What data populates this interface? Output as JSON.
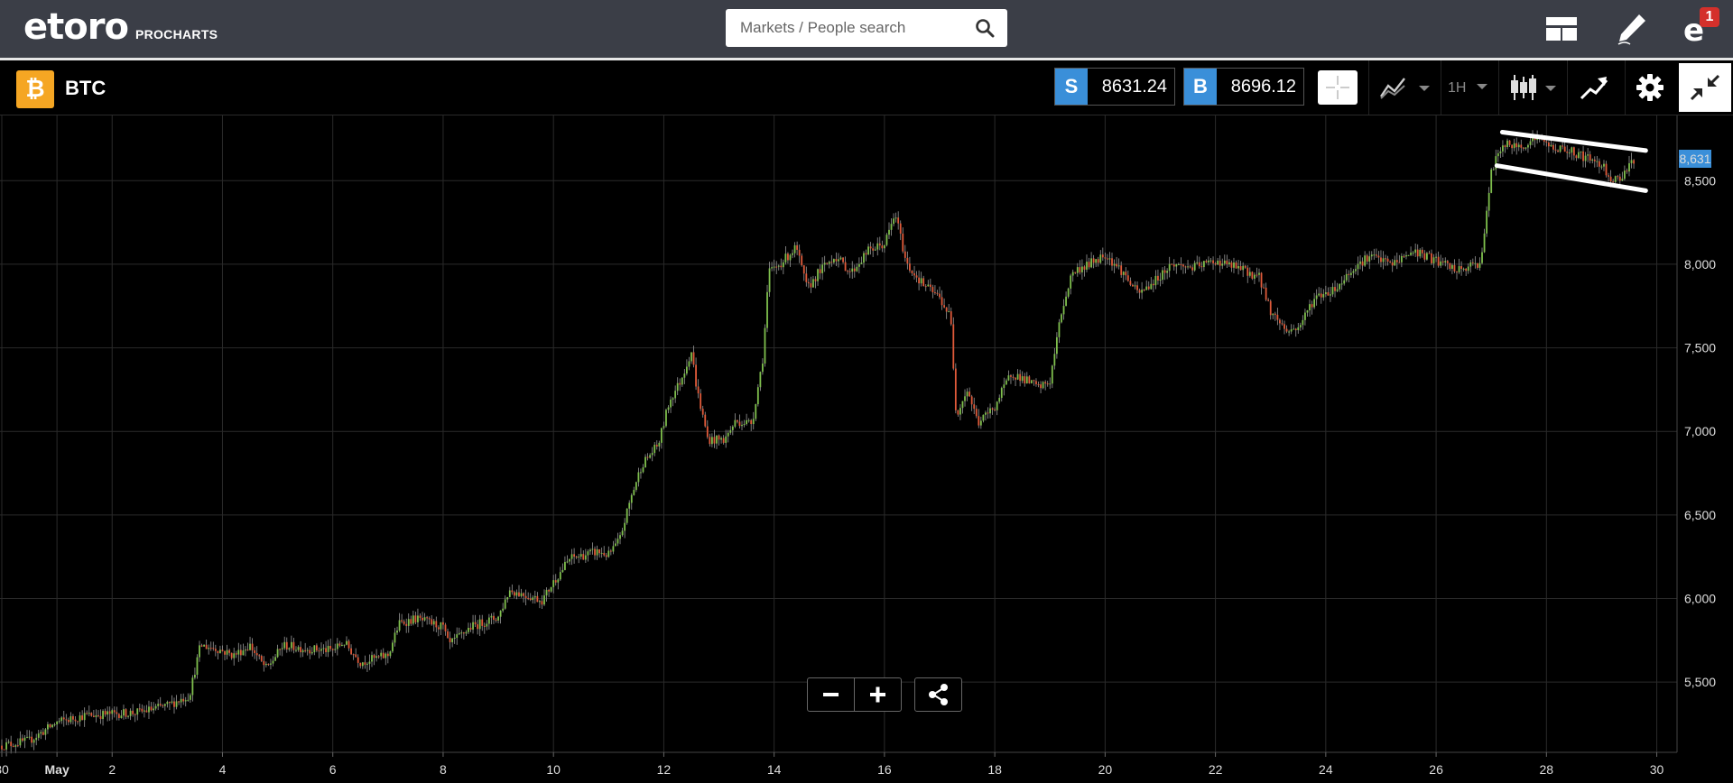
{
  "header": {
    "logo_text": "etoro",
    "logo_subtitle": "PROCHARTS",
    "search_placeholder": "Markets / People search",
    "notification_count": "1"
  },
  "instrument": {
    "symbol": "BTC",
    "icon": "bitcoin-icon",
    "sell_label": "S",
    "sell_price": "8631.24",
    "buy_label": "B",
    "buy_price": "8696.12",
    "timeframe": "1H"
  },
  "colors": {
    "up": "#7fbf4d",
    "down": "#e05a3a",
    "brand_orange": "#f5a623",
    "price_tag": "#3a8fd9"
  },
  "chart_data": {
    "type": "candlestick",
    "title": "",
    "xlabel": "",
    "ylabel": "",
    "x_ticks": [
      "30",
      "May",
      "2",
      "4",
      "6",
      "8",
      "10",
      "12",
      "14",
      "16",
      "18",
      "20",
      "22",
      "24",
      "26",
      "28",
      "30"
    ],
    "y_ticks": [
      5500,
      6000,
      6500,
      7000,
      7500,
      8000,
      8500
    ],
    "ylim": [
      5080,
      8890
    ],
    "x_unit": "days since Apr 30",
    "xlim": [
      0,
      30.4
    ],
    "last_price": 8631,
    "last_price_label": "8,631",
    "grid": true,
    "series_path": [
      [
        0,
        5120
      ],
      [
        0.5,
        5150
      ],
      [
        1,
        5260
      ],
      [
        1.5,
        5300
      ],
      [
        2,
        5310
      ],
      [
        2.5,
        5320
      ],
      [
        3,
        5360
      ],
      [
        3.4,
        5420
      ],
      [
        3.6,
        5720
      ],
      [
        3.9,
        5700
      ],
      [
        4.2,
        5660
      ],
      [
        4.5,
        5720
      ],
      [
        4.7,
        5620
      ],
      [
        4.8,
        5580
      ],
      [
        5.1,
        5720
      ],
      [
        5.5,
        5700
      ],
      [
        6.0,
        5690
      ],
      [
        6.2,
        5740
      ],
      [
        6.5,
        5620
      ],
      [
        7.0,
        5660
      ],
      [
        7.2,
        5850
      ],
      [
        7.5,
        5880
      ],
      [
        8.0,
        5830
      ],
      [
        8.1,
        5720
      ],
      [
        8.5,
        5830
      ],
      [
        9.0,
        5890
      ],
      [
        9.2,
        6050
      ],
      [
        9.5,
        6020
      ],
      [
        9.8,
        5990
      ],
      [
        10.0,
        6100
      ],
      [
        10.3,
        6240
      ],
      [
        10.8,
        6280
      ],
      [
        11.0,
        6260
      ],
      [
        11.2,
        6350
      ],
      [
        11.4,
        6600
      ],
      [
        11.6,
        6800
      ],
      [
        11.9,
        6920
      ],
      [
        12.1,
        7180
      ],
      [
        12.3,
        7300
      ],
      [
        12.5,
        7480
      ],
      [
        12.6,
        7250
      ],
      [
        12.8,
        6950
      ],
      [
        13.1,
        6950
      ],
      [
        13.3,
        7060
      ],
      [
        13.6,
        7050
      ],
      [
        13.8,
        7450
      ],
      [
        13.9,
        7950
      ],
      [
        14.1,
        8000
      ],
      [
        14.4,
        8100
      ],
      [
        14.6,
        7850
      ],
      [
        14.8,
        7950
      ],
      [
        15.1,
        8050
      ],
      [
        15.4,
        7950
      ],
      [
        15.7,
        8080
      ],
      [
        16.0,
        8120
      ],
      [
        16.2,
        8300
      ],
      [
        16.4,
        8000
      ],
      [
        16.7,
        7880
      ],
      [
        17.0,
        7800
      ],
      [
        17.2,
        7680
      ],
      [
        17.3,
        7100
      ],
      [
        17.5,
        7250
      ],
      [
        17.7,
        7050
      ],
      [
        18.0,
        7150
      ],
      [
        18.3,
        7350
      ],
      [
        18.6,
        7300
      ],
      [
        18.8,
        7260
      ],
      [
        19.0,
        7300
      ],
      [
        19.2,
        7700
      ],
      [
        19.4,
        7950
      ],
      [
        19.7,
        8000
      ],
      [
        20.0,
        8060
      ],
      [
        20.3,
        7960
      ],
      [
        20.6,
        7820
      ],
      [
        20.9,
        7900
      ],
      [
        21.2,
        8000
      ],
      [
        21.6,
        7980
      ],
      [
        22.0,
        8020
      ],
      [
        22.4,
        7980
      ],
      [
        22.8,
        7920
      ],
      [
        23.0,
        7720
      ],
      [
        23.3,
        7600
      ],
      [
        23.5,
        7620
      ],
      [
        23.8,
        7800
      ],
      [
        24.2,
        7860
      ],
      [
        24.5,
        7980
      ],
      [
        24.8,
        8050
      ],
      [
        25.2,
        8000
      ],
      [
        25.6,
        8080
      ],
      [
        26.0,
        8020
      ],
      [
        26.4,
        7960
      ],
      [
        26.8,
        8010
      ],
      [
        26.9,
        8250
      ],
      [
        27.0,
        8550
      ],
      [
        27.2,
        8720
      ],
      [
        27.5,
        8700
      ],
      [
        27.8,
        8760
      ],
      [
        28.1,
        8700
      ],
      [
        28.4,
        8680
      ],
      [
        28.7,
        8640
      ],
      [
        29.0,
        8600
      ],
      [
        29.2,
        8500
      ],
      [
        29.35,
        8520
      ],
      [
        29.5,
        8600
      ],
      [
        29.6,
        8631
      ]
    ],
    "annotations": [
      {
        "type": "trendline",
        "from": [
          27.2,
          8790
        ],
        "to": [
          29.8,
          8680
        ]
      },
      {
        "type": "trendline",
        "from": [
          27.1,
          8590
        ],
        "to": [
          29.8,
          8440
        ]
      }
    ]
  }
}
